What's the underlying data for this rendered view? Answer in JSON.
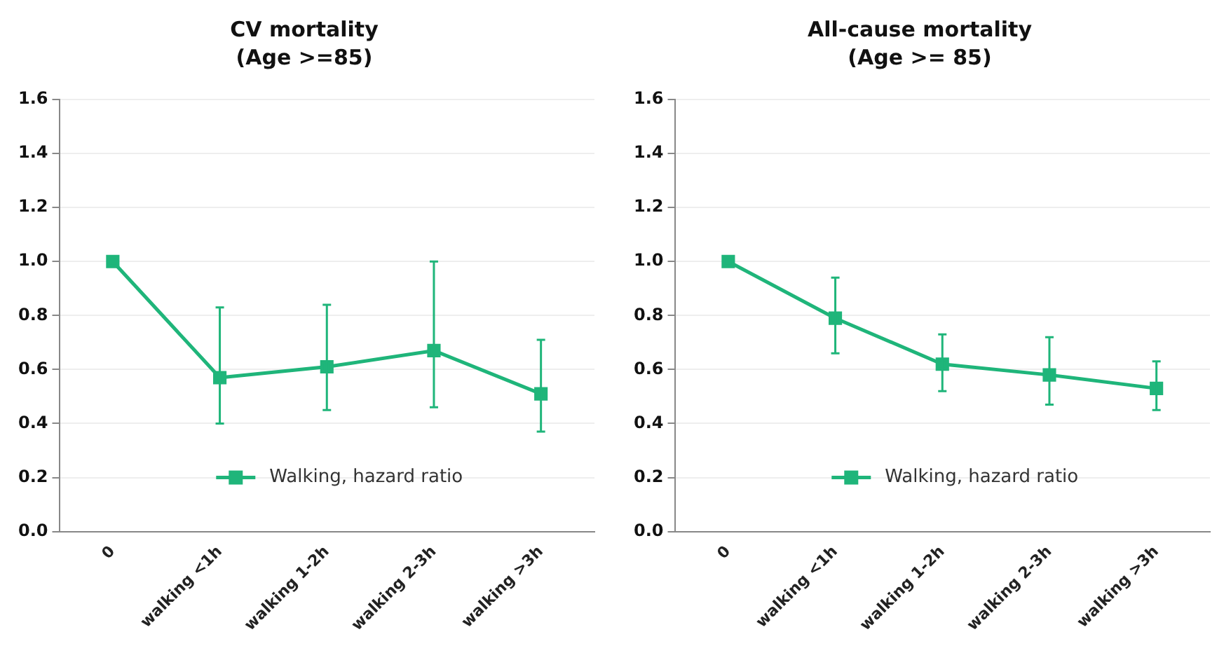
{
  "chart_data": [
    {
      "type": "line",
      "title": "CV mortality",
      "subtitle": "(Age >=85)",
      "categories": [
        "0",
        "walking <1h",
        "walking 1-2h",
        "walking 2-3h",
        "walking >3h"
      ],
      "series": [
        {
          "name": "Walking, hazard ratio",
          "color": "#1fb57a",
          "values": [
            1.0,
            0.57,
            0.61,
            0.67,
            0.51
          ],
          "errors": [
            null,
            [
              0.4,
              0.83
            ],
            [
              0.45,
              0.84
            ],
            [
              0.46,
              1.0
            ],
            [
              0.37,
              0.71
            ]
          ]
        }
      ],
      "ylim": [
        0,
        1.6
      ],
      "yticks": [
        {
          "value": 0,
          "label": "0.0"
        },
        {
          "value": 0.2,
          "label": "0.2"
        },
        {
          "value": 0.4,
          "label": "0.4"
        },
        {
          "value": 0.6,
          "label": "0.6"
        },
        {
          "value": 0.8,
          "label": "0.8"
        },
        {
          "value": 1.0,
          "label": "1.0"
        },
        {
          "value": 1.2,
          "label": "1.2"
        },
        {
          "value": 1.4,
          "label": "1.4"
        },
        {
          "value": 1.6,
          "label": "1.6"
        }
      ],
      "grid": "y",
      "legend": "bottom",
      "marker": "square",
      "line_style": "solid"
    },
    {
      "type": "line",
      "title": "All-cause mortality",
      "subtitle": "(Age >= 85)",
      "categories": [
        "0",
        "walking <1h",
        "walking 1-2h",
        "walking 2-3h",
        "walking >3h"
      ],
      "series": [
        {
          "name": "Walking, hazard ratio",
          "color": "#1fb57a",
          "values": [
            1.0,
            0.79,
            0.62,
            0.58,
            0.53
          ],
          "errors": [
            null,
            [
              0.66,
              0.94
            ],
            [
              0.52,
              0.73
            ],
            [
              0.47,
              0.72
            ],
            [
              0.45,
              0.63
            ]
          ]
        }
      ],
      "ylim": [
        0,
        1.6
      ],
      "yticks": [
        {
          "value": 0,
          "label": "0.0"
        },
        {
          "value": 0.2,
          "label": "0.2"
        },
        {
          "value": 0.4,
          "label": "0.4"
        },
        {
          "value": 0.6,
          "label": "0.6"
        },
        {
          "value": 0.8,
          "label": "0.8"
        },
        {
          "value": 1.0,
          "label": "1.0"
        },
        {
          "value": 1.2,
          "label": "1.2"
        },
        {
          "value": 1.4,
          "label": "1.4"
        },
        {
          "value": 1.6,
          "label": "1.6"
        }
      ],
      "grid": "y",
      "legend": "bottom",
      "marker": "square",
      "line_style": "solid"
    }
  ]
}
